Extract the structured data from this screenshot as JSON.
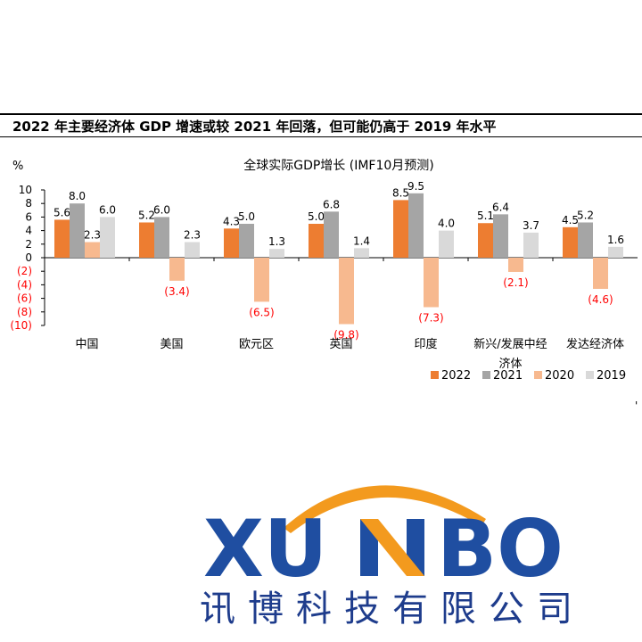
{
  "headline": "2022 年主要经济体 GDP 增速或较 2021 年回落，但可能仍高于 2019 年水平",
  "stray_mark": "'",
  "logo": {
    "brand_left": "XU",
    "brand_right": "BO",
    "company_name": "讯博科技有限公司",
    "colors": {
      "blue": "#1f4ea1",
      "orange": "#f39a1e"
    }
  },
  "colors": {
    "s2022": "#ed7d31",
    "s2021": "#a5a5a5",
    "s2020": "#f7b98f",
    "s2019": "#d9d9d9",
    "negative_label": "#ff0000"
  },
  "chart_data": {
    "type": "bar",
    "title": "全球实际GDP增长 (IMF10月预测)",
    "ylabel": "%",
    "ylim": [
      -10,
      10
    ],
    "yticks": [
      "10",
      "8",
      "6",
      "4",
      "2",
      "0",
      "(2)",
      "(4)",
      "(6)",
      "(8)",
      "(10)"
    ],
    "categories": [
      "中国",
      "美国",
      "欧元区",
      "英国",
      "印度",
      "新兴/发展中经济体",
      "发达经济体"
    ],
    "category_lines": [
      [
        "中国"
      ],
      [
        "美国"
      ],
      [
        "欧元区"
      ],
      [
        "英国"
      ],
      [
        "印度"
      ],
      [
        "新兴/发展中经",
        "济体"
      ],
      [
        "发达经济体"
      ]
    ],
    "legend_position": "bottom-right",
    "series": [
      {
        "name": "2022",
        "values": [
          5.6,
          5.2,
          4.3,
          5.0,
          8.5,
          5.1,
          4.5
        ],
        "labels": [
          "5.6",
          "5.2",
          "4.3",
          "5.0",
          "8.5",
          "5.1",
          "4.5"
        ]
      },
      {
        "name": "2021",
        "values": [
          8.0,
          6.0,
          5.0,
          6.8,
          9.5,
          6.4,
          5.2
        ],
        "labels": [
          "8.0",
          "6.0",
          "5.0",
          "6.8",
          "9.5",
          "6.4",
          "5.2"
        ]
      },
      {
        "name": "2020",
        "values": [
          2.3,
          -3.4,
          -6.5,
          -9.8,
          -7.3,
          -2.1,
          -4.6
        ],
        "labels": [
          "2.3",
          "(3.4)",
          "(6.5)",
          "(9.8)",
          "(7.3)",
          "(2.1)",
          "(4.6)"
        ]
      },
      {
        "name": "2019",
        "values": [
          6.0,
          2.3,
          1.3,
          1.4,
          4.0,
          3.7,
          1.6
        ],
        "labels": [
          "6.0",
          "2.3",
          "1.3",
          "1.4",
          "4.0",
          "3.7",
          "1.6"
        ]
      }
    ]
  }
}
